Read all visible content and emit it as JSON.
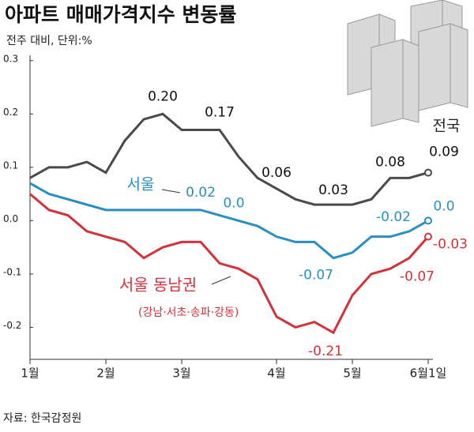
{
  "chart_data": {
    "type": "line",
    "title": "아파트 매매가격지수 변동률",
    "subtitle": "전주 대비, 단위:%",
    "source": "자료: 한국감정원",
    "annotation": "(강남·서초·송파·강동)",
    "categories": [
      "1월",
      null,
      null,
      null,
      "2월",
      null,
      null,
      null,
      "3월",
      null,
      null,
      null,
      null,
      "4월",
      null,
      null,
      null,
      "5월",
      null,
      null,
      null,
      "6월1일"
    ],
    "ylim": [
      -0.26,
      0.31
    ],
    "yticks": [
      0.3,
      0.2,
      0.1,
      {
        "value": 0,
        "label": "0.0"
      },
      -0.1,
      -0.2
    ],
    "series": [
      {
        "name": "전국",
        "color": "#4a4a4a",
        "values": [
          0.08,
          0.1,
          0.1,
          0.11,
          0.09,
          0.15,
          0.19,
          0.2,
          0.17,
          0.17,
          0.17,
          0.12,
          0.08,
          0.06,
          0.04,
          0.03,
          0.03,
          0.03,
          0.04,
          0.08,
          0.08,
          0.09
        ],
        "value_labels": [
          null,
          null,
          null,
          null,
          null,
          null,
          null,
          "0.20",
          null,
          null,
          "0.17",
          null,
          null,
          "0.06",
          null,
          null,
          "0.03",
          null,
          null,
          "0.08",
          null,
          "0.09"
        ]
      },
      {
        "name": "서울",
        "color": "#2a8fc0",
        "values": [
          0.07,
          0.05,
          0.04,
          0.03,
          0.02,
          0.02,
          0.02,
          0.02,
          0.02,
          0.02,
          0.01,
          0,
          -0.01,
          -0.03,
          -0.04,
          -0.04,
          -0.07,
          -0.06,
          -0.03,
          -0.03,
          -0.02,
          0
        ],
        "value_labels": [
          null,
          null,
          null,
          null,
          null,
          null,
          null,
          null,
          null,
          "0.02",
          null,
          "0.0",
          null,
          null,
          null,
          null,
          "-0.07",
          null,
          null,
          null,
          "-0.02",
          "0.0"
        ]
      },
      {
        "name": "서울 동남권",
        "color": "#d2323c",
        "values": [
          0.05,
          0.02,
          0.01,
          -0.02,
          -0.03,
          -0.04,
          -0.07,
          -0.05,
          -0.04,
          -0.04,
          -0.08,
          -0.09,
          -0.11,
          -0.18,
          -0.2,
          -0.19,
          -0.21,
          -0.14,
          -0.1,
          -0.09,
          -0.07,
          -0.03
        ],
        "value_labels": [
          null,
          null,
          null,
          null,
          null,
          null,
          null,
          null,
          null,
          null,
          null,
          null,
          null,
          null,
          null,
          null,
          "-0.21",
          null,
          null,
          null,
          "-0.07",
          "-0.03"
        ]
      }
    ]
  }
}
